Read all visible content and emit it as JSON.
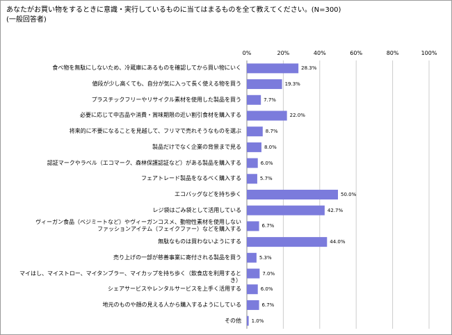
{
  "chart_data": {
    "type": "barh",
    "title": "あなたがお買い物をするときに意識・実行しているものに当てはまるものを全て教えてください。(N=300)",
    "subtitle": "(一般回答者)",
    "categories": [
      "食べ物を無駄にしないため、冷蔵庫にあるものを確認してから買い物にいく",
      "値段が少し高くても、自分が気に入って長く使える物を買う",
      "プラスチックフリーやリサイクル素材を使用した製品を買う",
      "必要に応じて中古品や消費・賞味期限の近い割引食材を購入する",
      "将来的に不要になることを見越して、フリマで売れそうなものを選ぶ",
      "製品だけでなく企業の背景まで見る",
      "認証マークやラベル（エコマーク、森林保護認証など）がある製品を購入する",
      "フェアトレード製品をなるべく購入する",
      "エコバッグなどを持ち歩く",
      "レジ袋はごみ袋として活用している",
      "ヴィーガン食品（ベジミートなど）やヴィーガンコスメ、動物性素材を使用しない\nファッションアイテム（フェイクファー）などを購入する",
      "無駄なものは買わないようにする",
      "売り上げの一部が慈善事業に寄付される製品を買う",
      "マイはし、マイストロー、マイタンブラー、マイカップを持ち歩く（飲食店を利用するとき）",
      "シェアサービスやレンタルサービスを上手く活用する",
      "地元のものや顔の見える人から購入するようにしている",
      "その他"
    ],
    "values": [
      28.3,
      19.3,
      7.7,
      22.0,
      8.7,
      8.0,
      6.0,
      5.7,
      50.0,
      42.7,
      6.7,
      44.0,
      5.3,
      7.0,
      6.0,
      6.7,
      1.0
    ],
    "value_labels": [
      "28.3%",
      "19.3%",
      "7.7%",
      "22.0%",
      "8.7%",
      "8.0%",
      "6.0%",
      "5.7%",
      "50.0%",
      "42.7%",
      "6.7%",
      "44.0%",
      "5.3%",
      "7.0%",
      "6.0%",
      "6.7%",
      "1.0%"
    ],
    "color": "#7b7bdc",
    "xlim": [
      0,
      100
    ],
    "xticks": [
      {
        "value": 0,
        "label": "0%"
      },
      {
        "value": 20,
        "label": "20%"
      },
      {
        "value": 40,
        "label": "40%"
      },
      {
        "value": 60,
        "label": "60%"
      },
      {
        "value": 80,
        "label": "80%"
      },
      {
        "value": 100,
        "label": "100%"
      }
    ],
    "grid": true
  }
}
